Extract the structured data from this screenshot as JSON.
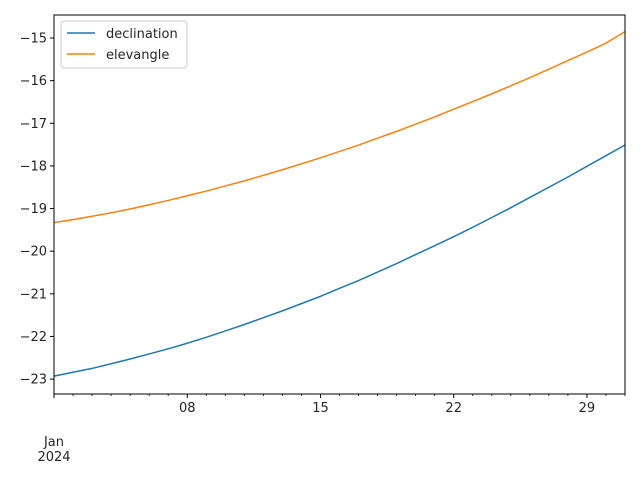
{
  "chart_data": {
    "type": "line",
    "x": [
      "2024-01-01",
      "2024-01-02",
      "2024-01-03",
      "2024-01-04",
      "2024-01-05",
      "2024-01-06",
      "2024-01-07",
      "2024-01-08",
      "2024-01-09",
      "2024-01-10",
      "2024-01-11",
      "2024-01-12",
      "2024-01-13",
      "2024-01-14",
      "2024-01-15",
      "2024-01-16",
      "2024-01-17",
      "2024-01-18",
      "2024-01-19",
      "2024-01-20",
      "2024-01-21",
      "2024-01-22",
      "2024-01-23",
      "2024-01-24",
      "2024-01-25",
      "2024-01-26",
      "2024-01-27",
      "2024-01-28",
      "2024-01-29",
      "2024-01-30",
      "2024-01-31"
    ],
    "series": [
      {
        "name": "declination",
        "color": "#1f77b4",
        "values": [
          -22.93,
          -22.84,
          -22.75,
          -22.64,
          -22.53,
          -22.41,
          -22.29,
          -22.16,
          -22.02,
          -21.87,
          -21.72,
          -21.56,
          -21.4,
          -21.23,
          -21.06,
          -20.87,
          -20.69,
          -20.49,
          -20.29,
          -20.08,
          -19.87,
          -19.66,
          -19.44,
          -19.21,
          -18.98,
          -18.74,
          -18.5,
          -18.26,
          -18.01,
          -17.76,
          -17.51
        ]
      },
      {
        "name": "elevangle",
        "color": "#ff7f0e",
        "values": [
          -19.33,
          -19.26,
          -19.18,
          -19.1,
          -19.01,
          -18.91,
          -18.81,
          -18.7,
          -18.59,
          -18.47,
          -18.35,
          -18.22,
          -18.09,
          -17.95,
          -17.81,
          -17.66,
          -17.51,
          -17.35,
          -17.19,
          -17.02,
          -16.85,
          -16.67,
          -16.49,
          -16.31,
          -16.12,
          -15.93,
          -15.73,
          -15.53,
          -15.33,
          -15.12,
          -14.85
        ]
      }
    ],
    "x_ticks": [
      {
        "date": "2024-01-01",
        "label": "Jan",
        "sublabel": "2024"
      },
      {
        "date": "2024-01-08",
        "label": "08"
      },
      {
        "date": "2024-01-15",
        "label": "15"
      },
      {
        "date": "2024-01-22",
        "label": "22"
      },
      {
        "date": "2024-01-29",
        "label": "29"
      }
    ],
    "y_ticks": [
      -23,
      -22,
      -21,
      -20,
      -19,
      -18,
      -17,
      -16,
      -15
    ],
    "y_tick_labels": [
      "−23",
      "−22",
      "−21",
      "−20",
      "−19",
      "−18",
      "−17",
      "−16",
      "−15"
    ],
    "xlim": [
      "2024-01-01",
      "2024-01-31"
    ],
    "ylim": [
      -23.35,
      -14.46
    ],
    "title": "",
    "xlabel": "",
    "ylabel": "",
    "grid": false,
    "legend_position": "top-left"
  }
}
